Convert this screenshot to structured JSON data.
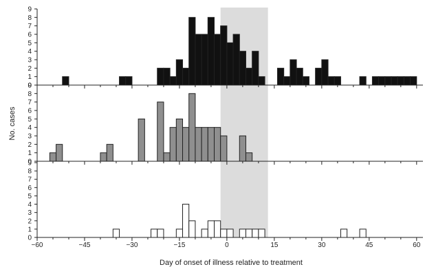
{
  "chart_data": {
    "type": "bar",
    "bin_width": 2,
    "xlim": [
      -60,
      62
    ],
    "x_ticks": [
      -60,
      -45,
      -30,
      -15,
      0,
      15,
      30,
      45,
      60
    ],
    "x_tick_labels": [
      "−60",
      "−45",
      "−30",
      "−15",
      "0",
      "15",
      "30",
      "45",
      "60"
    ],
    "xlabel": "Day of onset of illness relative to treatment",
    "ylabel": "No. cases",
    "ylim": [
      0,
      9
    ],
    "y_ticks": [
      0,
      1,
      2,
      3,
      4,
      5,
      6,
      7,
      8,
      9
    ],
    "shaded_range": [
      -2,
      13
    ],
    "shade_color": "#dcdcdc",
    "panels": [
      {
        "fill": "#111111",
        "bins": [
          {
            "x": -52,
            "value": 1
          },
          {
            "x": -34,
            "value": 1
          },
          {
            "x": -32,
            "value": 1
          },
          {
            "x": -22,
            "value": 2
          },
          {
            "x": -20,
            "value": 2
          },
          {
            "x": -18,
            "value": 1
          },
          {
            "x": -16,
            "value": 3
          },
          {
            "x": -14,
            "value": 2
          },
          {
            "x": -12,
            "value": 8
          },
          {
            "x": -10,
            "value": 6
          },
          {
            "x": -8,
            "value": 6
          },
          {
            "x": -6,
            "value": 8
          },
          {
            "x": -4,
            "value": 6
          },
          {
            "x": -2,
            "value": 7
          },
          {
            "x": 0,
            "value": 5
          },
          {
            "x": 2,
            "value": 6
          },
          {
            "x": 4,
            "value": 4
          },
          {
            "x": 6,
            "value": 2
          },
          {
            "x": 8,
            "value": 4
          },
          {
            "x": 10,
            "value": 1
          },
          {
            "x": 16,
            "value": 2
          },
          {
            "x": 18,
            "value": 1
          },
          {
            "x": 20,
            "value": 3
          },
          {
            "x": 22,
            "value": 2
          },
          {
            "x": 24,
            "value": 1
          },
          {
            "x": 28,
            "value": 2
          },
          {
            "x": 30,
            "value": 3
          },
          {
            "x": 32,
            "value": 1
          },
          {
            "x": 34,
            "value": 1
          },
          {
            "x": 42,
            "value": 1
          },
          {
            "x": 46,
            "value": 1
          },
          {
            "x": 48,
            "value": 1
          },
          {
            "x": 50,
            "value": 1
          },
          {
            "x": 52,
            "value": 1
          },
          {
            "x": 54,
            "value": 1
          },
          {
            "x": 56,
            "value": 1
          },
          {
            "x": 58,
            "value": 1
          }
        ]
      },
      {
        "fill": "#8f8f8f",
        "bins": [
          {
            "x": -56,
            "value": 1
          },
          {
            "x": -54,
            "value": 2
          },
          {
            "x": -40,
            "value": 1
          },
          {
            "x": -38,
            "value": 2
          },
          {
            "x": -28,
            "value": 5
          },
          {
            "x": -22,
            "value": 7
          },
          {
            "x": -20,
            "value": 1
          },
          {
            "x": -18,
            "value": 4
          },
          {
            "x": -16,
            "value": 5
          },
          {
            "x": -14,
            "value": 4
          },
          {
            "x": -12,
            "value": 8
          },
          {
            "x": -10,
            "value": 4
          },
          {
            "x": -8,
            "value": 4
          },
          {
            "x": -6,
            "value": 4
          },
          {
            "x": -4,
            "value": 4
          },
          {
            "x": -2,
            "value": 3
          },
          {
            "x": 4,
            "value": 3
          },
          {
            "x": 6,
            "value": 1
          }
        ]
      },
      {
        "fill": "#ffffff",
        "bins": [
          {
            "x": -36,
            "value": 1
          },
          {
            "x": -24,
            "value": 1
          },
          {
            "x": -22,
            "value": 1
          },
          {
            "x": -16,
            "value": 1
          },
          {
            "x": -14,
            "value": 4
          },
          {
            "x": -12,
            "value": 2
          },
          {
            "x": -8,
            "value": 1
          },
          {
            "x": -6,
            "value": 2
          },
          {
            "x": -4,
            "value": 2
          },
          {
            "x": -2,
            "value": 1
          },
          {
            "x": 0,
            "value": 1
          },
          {
            "x": 4,
            "value": 1
          },
          {
            "x": 6,
            "value": 1
          },
          {
            "x": 8,
            "value": 1
          },
          {
            "x": 10,
            "value": 1
          },
          {
            "x": 36,
            "value": 1
          },
          {
            "x": 42,
            "value": 1
          }
        ]
      }
    ]
  }
}
